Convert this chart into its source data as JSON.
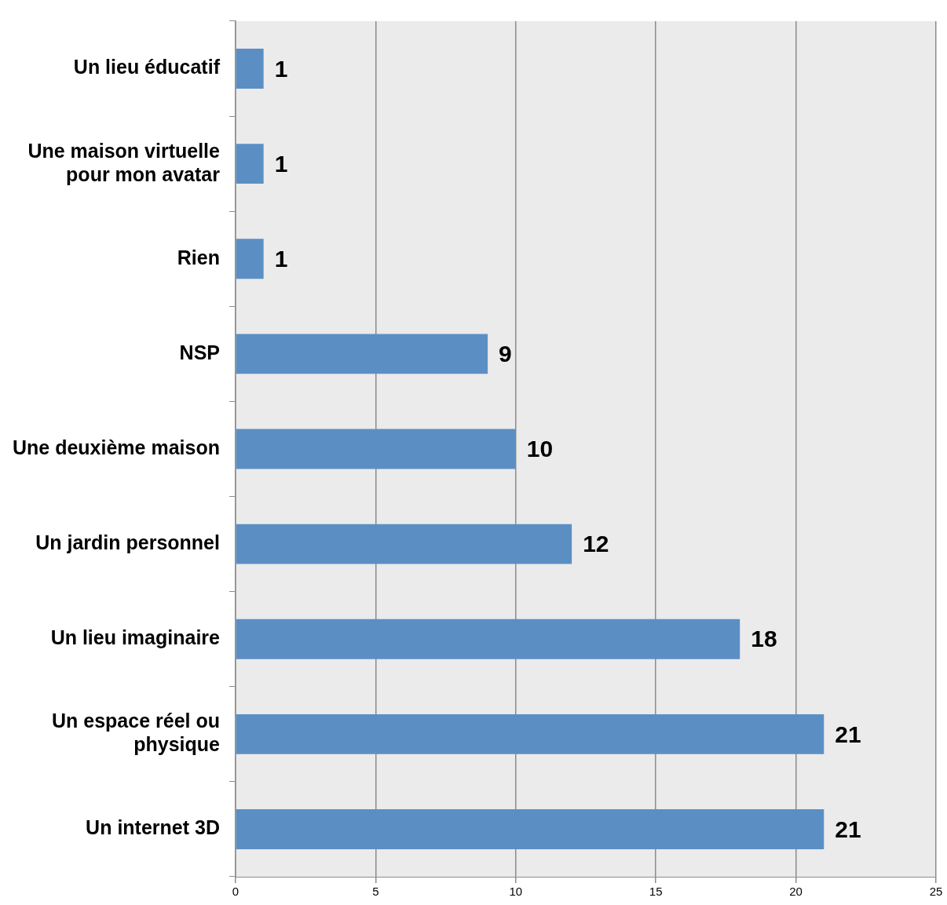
{
  "chart_data": {
    "type": "bar",
    "orientation": "horizontal",
    "categories": [
      "Un lieu éducatif",
      "Une maison virtuelle pour mon avatar",
      "Rien",
      "NSP",
      "Une deuxième maison",
      "Un jardin personnel",
      "Un lieu imaginaire",
      "Un espace réel ou physique",
      "Un internet 3D"
    ],
    "values": [
      1,
      1,
      1,
      9,
      10,
      12,
      18,
      21,
      21
    ],
    "color": "#5b8fc4",
    "xlim": [
      0,
      25
    ],
    "xticks": [
      0,
      5,
      10,
      15,
      20,
      25
    ],
    "grid": "x",
    "legend": false,
    "data_labels": true
  }
}
